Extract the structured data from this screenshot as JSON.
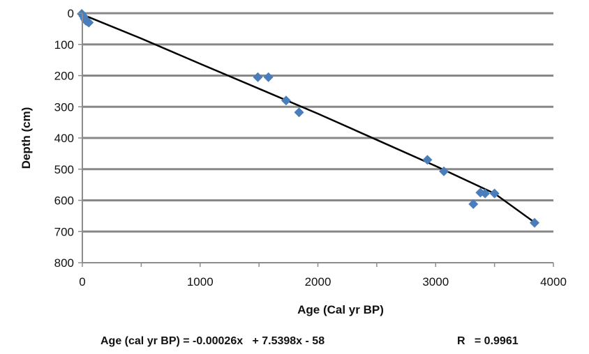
{
  "chart_data": {
    "type": "scatter",
    "title": "",
    "xlabel": "Age (Cal yr BP)",
    "ylabel": "Depth (cm)",
    "xlim": [
      0,
      4000
    ],
    "ylim": [
      0,
      800
    ],
    "y_inverted": true,
    "x_ticks": [
      0,
      1000,
      2000,
      3000,
      4000
    ],
    "x_tick_labels": [
      "0",
      "1000",
      "2000",
      "3000",
      "4000"
    ],
    "y_ticks": [
      0,
      100,
      200,
      300,
      400,
      500,
      600,
      700,
      800
    ],
    "y_tick_labels": [
      "0",
      "100",
      "200",
      "300",
      "400",
      "500",
      "600",
      "700",
      "800"
    ],
    "gridlines": "horizontal",
    "marker_color": "#4a7ebb",
    "trendline_color": "#000000",
    "points": [
      {
        "x": -5,
        "y": 2
      },
      {
        "x": 10,
        "y": 10
      },
      {
        "x": 20,
        "y": 18
      },
      {
        "x": 30,
        "y": 24
      },
      {
        "x": 45,
        "y": 27
      },
      {
        "x": 55,
        "y": 30
      },
      {
        "x": 1490,
        "y": 205
      },
      {
        "x": 1580,
        "y": 205
      },
      {
        "x": 1730,
        "y": 280
      },
      {
        "x": 1840,
        "y": 318
      },
      {
        "x": 2930,
        "y": 470
      },
      {
        "x": 3070,
        "y": 507
      },
      {
        "x": 3320,
        "y": 612
      },
      {
        "x": 3380,
        "y": 575
      },
      {
        "x": 3420,
        "y": 578
      },
      {
        "x": 3500,
        "y": 578
      },
      {
        "x": 3840,
        "y": 672
      }
    ],
    "trendline": {
      "type": "polynomial",
      "x": [
        -30,
        0,
        500,
        1000,
        1500,
        2000,
        2500,
        3000,
        3500,
        3830
      ],
      "y": [
        -2,
        4,
        81,
        162,
        242,
        322,
        406,
        490,
        578,
        668
      ]
    },
    "equation": "Age (cal yr BP) = -0.00026x   + 7.5398x - 58",
    "r_value": "R   = 0.9961"
  }
}
